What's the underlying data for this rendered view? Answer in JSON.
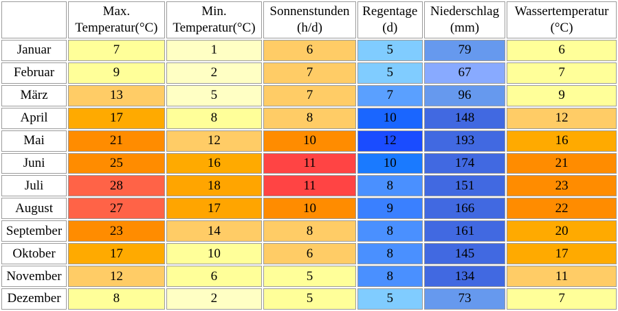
{
  "headers": [
    {
      "line1": "Max.",
      "line2": "Temperatur(°C)"
    },
    {
      "line1": "Min.",
      "line2": "Temperatur(°C)"
    },
    {
      "line1": "Sonnenstunden",
      "line2": "(h/d)"
    },
    {
      "line1": "Regentage",
      "line2": "(d)"
    },
    {
      "line1": "Niederschlag",
      "line2": "(mm)"
    },
    {
      "line1": "Wassertemperatur",
      "line2": "(°C)"
    }
  ],
  "rows": [
    {
      "month": "Januar",
      "cells": [
        {
          "v": "7",
          "c": "#ffff99"
        },
        {
          "v": "1",
          "c": "#ffffc4"
        },
        {
          "v": "6",
          "c": "#ffcc66"
        },
        {
          "v": "5",
          "c": "#80ccff"
        },
        {
          "v": "79",
          "c": "#6699ee"
        },
        {
          "v": "6",
          "c": "#ffff99"
        }
      ]
    },
    {
      "month": "Februar",
      "cells": [
        {
          "v": "9",
          "c": "#ffff99"
        },
        {
          "v": "2",
          "c": "#ffffc4"
        },
        {
          "v": "7",
          "c": "#ffcc66"
        },
        {
          "v": "5",
          "c": "#80ccff"
        },
        {
          "v": "67",
          "c": "#88aaff"
        },
        {
          "v": "7",
          "c": "#ffff99"
        }
      ]
    },
    {
      "month": "März",
      "cells": [
        {
          "v": "13",
          "c": "#ffcc66"
        },
        {
          "v": "5",
          "c": "#ffffc4"
        },
        {
          "v": "7",
          "c": "#ffcc66"
        },
        {
          "v": "7",
          "c": "#5aa0ff"
        },
        {
          "v": "96",
          "c": "#6699ee"
        },
        {
          "v": "9",
          "c": "#ffff99"
        }
      ]
    },
    {
      "month": "April",
      "cells": [
        {
          "v": "17",
          "c": "#ffaa00"
        },
        {
          "v": "8",
          "c": "#ffff99"
        },
        {
          "v": "8",
          "c": "#ffcc66"
        },
        {
          "v": "10",
          "c": "#1a66ff"
        },
        {
          "v": "148",
          "c": "#4169e1"
        },
        {
          "v": "12",
          "c": "#ffcc66"
        }
      ]
    },
    {
      "month": "Mai",
      "cells": [
        {
          "v": "21",
          "c": "#ff8c00"
        },
        {
          "v": "12",
          "c": "#ffcc66"
        },
        {
          "v": "10",
          "c": "#ff8c00"
        },
        {
          "v": "12",
          "c": "#1a4cff"
        },
        {
          "v": "193",
          "c": "#4169e1"
        },
        {
          "v": "16",
          "c": "#ffaa00"
        }
      ]
    },
    {
      "month": "Juni",
      "cells": [
        {
          "v": "25",
          "c": "#ff8c00"
        },
        {
          "v": "16",
          "c": "#ffaa00"
        },
        {
          "v": "11",
          "c": "#ff4444"
        },
        {
          "v": "10",
          "c": "#1a7aff"
        },
        {
          "v": "174",
          "c": "#4169e1"
        },
        {
          "v": "21",
          "c": "#ff8c00"
        }
      ]
    },
    {
      "month": "Juli",
      "cells": [
        {
          "v": "28",
          "c": "#ff6347"
        },
        {
          "v": "18",
          "c": "#ffa500"
        },
        {
          "v": "11",
          "c": "#ff4444"
        },
        {
          "v": "8",
          "c": "#4a90ff"
        },
        {
          "v": "151",
          "c": "#4169e1"
        },
        {
          "v": "23",
          "c": "#ff8c00"
        }
      ]
    },
    {
      "month": "August",
      "cells": [
        {
          "v": "27",
          "c": "#ff6347"
        },
        {
          "v": "17",
          "c": "#ffa500"
        },
        {
          "v": "10",
          "c": "#ff8c00"
        },
        {
          "v": "9",
          "c": "#3a80ff"
        },
        {
          "v": "166",
          "c": "#4169e1"
        },
        {
          "v": "22",
          "c": "#ff8c00"
        }
      ]
    },
    {
      "month": "September",
      "cells": [
        {
          "v": "23",
          "c": "#ff8c00"
        },
        {
          "v": "14",
          "c": "#ffcc66"
        },
        {
          "v": "8",
          "c": "#ffcc66"
        },
        {
          "v": "8",
          "c": "#4a90ff"
        },
        {
          "v": "161",
          "c": "#4169e1"
        },
        {
          "v": "20",
          "c": "#ffaa00"
        }
      ]
    },
    {
      "month": "Oktober",
      "cells": [
        {
          "v": "17",
          "c": "#ffaa00"
        },
        {
          "v": "10",
          "c": "#ffff99"
        },
        {
          "v": "6",
          "c": "#ffcc66"
        },
        {
          "v": "8",
          "c": "#4a90ff"
        },
        {
          "v": "145",
          "c": "#4169e1"
        },
        {
          "v": "17",
          "c": "#ffaa00"
        }
      ]
    },
    {
      "month": "November",
      "cells": [
        {
          "v": "12",
          "c": "#ffcc66"
        },
        {
          "v": "6",
          "c": "#ffff99"
        },
        {
          "v": "5",
          "c": "#ffff99"
        },
        {
          "v": "8",
          "c": "#4a90ff"
        },
        {
          "v": "134",
          "c": "#4169e1"
        },
        {
          "v": "11",
          "c": "#ffcc66"
        }
      ]
    },
    {
      "month": "Dezember",
      "cells": [
        {
          "v": "8",
          "c": "#ffff99"
        },
        {
          "v": "2",
          "c": "#ffffc4"
        },
        {
          "v": "5",
          "c": "#ffff99"
        },
        {
          "v": "5",
          "c": "#80ccff"
        },
        {
          "v": "73",
          "c": "#6699ee"
        },
        {
          "v": "7",
          "c": "#ffff99"
        }
      ]
    }
  ]
}
